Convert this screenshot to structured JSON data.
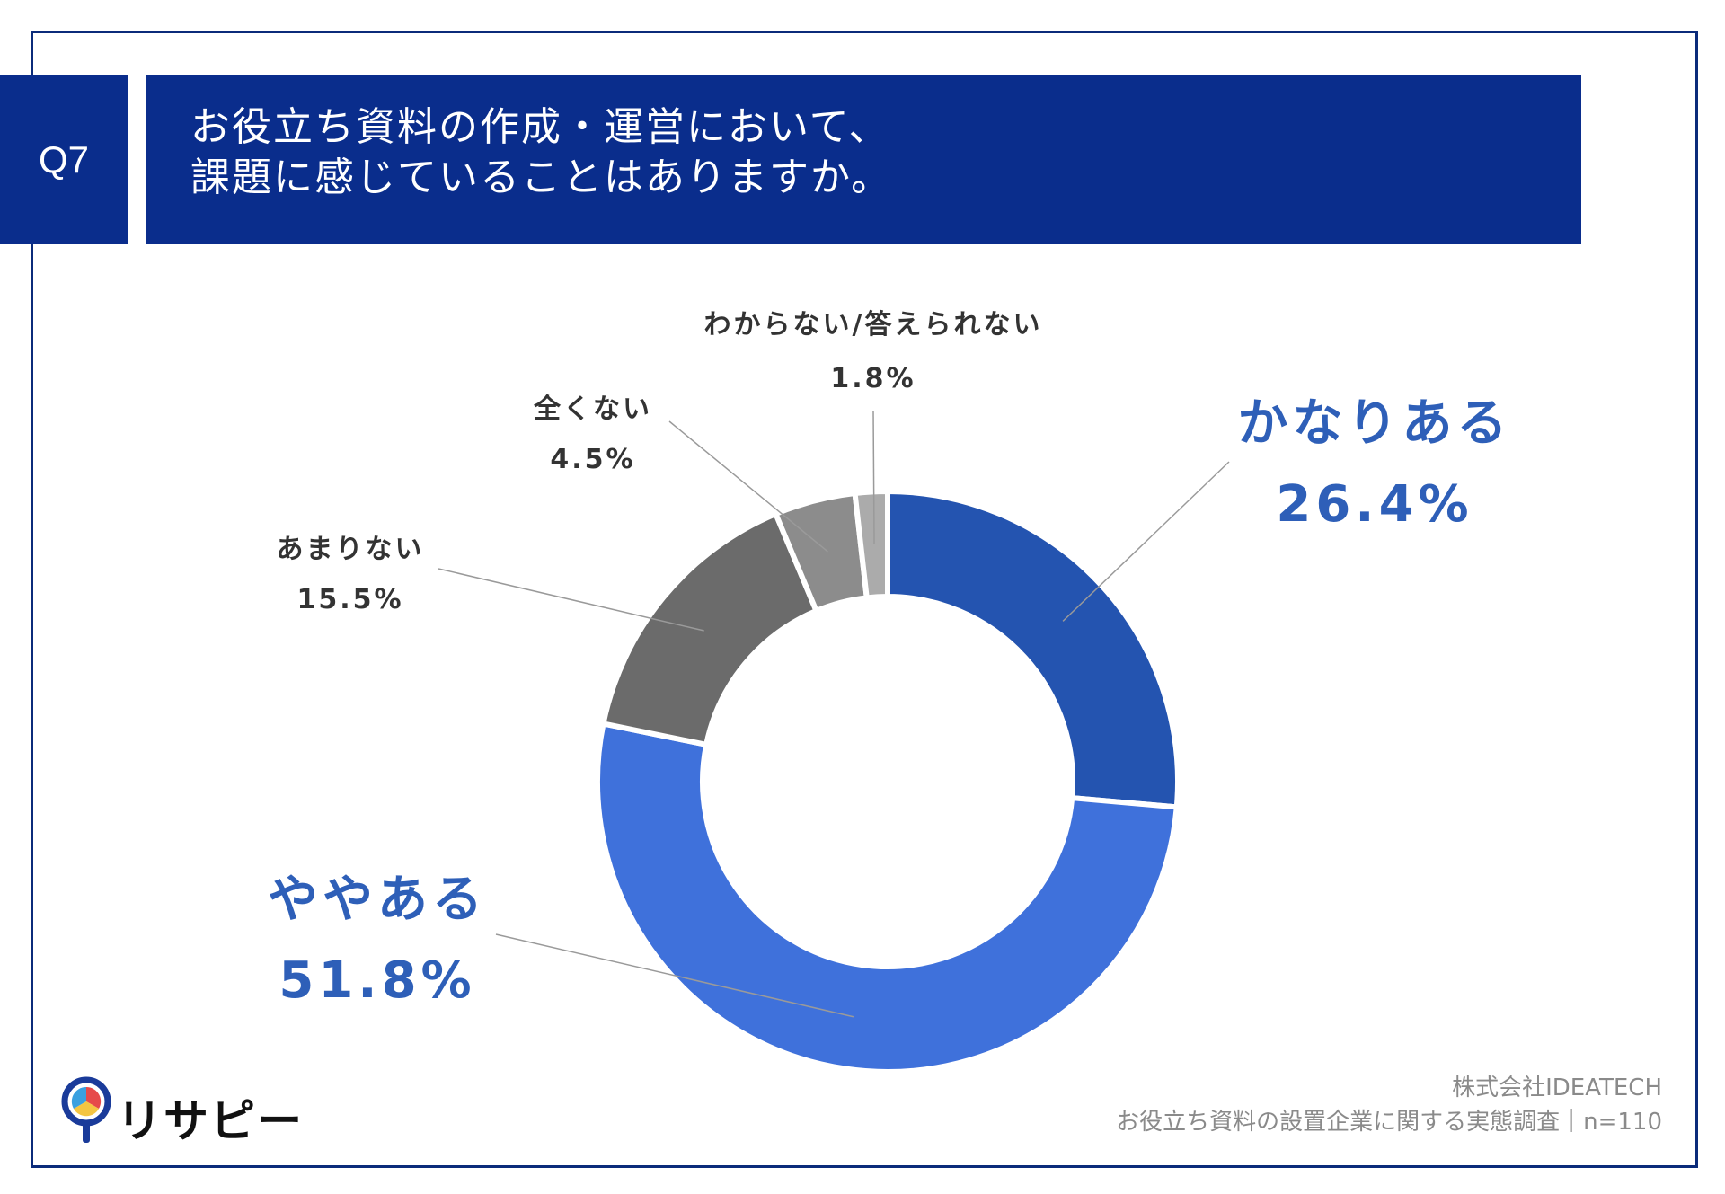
{
  "question_label": "Q7",
  "title_lines": [
    "お役立ち資料の作成・運営において、",
    "課題に感じていることはありますか。"
  ],
  "chart_data": {
    "type": "pie",
    "variant": "donut",
    "start_angle_deg": 0,
    "categories": [
      "かなりある",
      "ややある",
      "あまりない",
      "全くない",
      "わからない/答えられない"
    ],
    "values": [
      26.4,
      51.8,
      15.5,
      4.5,
      1.8
    ],
    "value_labels": [
      "26.4%",
      "51.8%",
      "15.5%",
      "4.5%",
      "1.8%"
    ],
    "colors": [
      "#2454b0",
      "#3f71db",
      "#6b6b6b",
      "#8c8c8c",
      "#ababab"
    ]
  },
  "source": {
    "company": "株式会社IDEATECH",
    "survey": "お役立ち資料の設置企業に関する実態調査｜n=110"
  },
  "logo": {
    "text": "リサピー",
    "icon": "magnifier-pie-icon"
  }
}
